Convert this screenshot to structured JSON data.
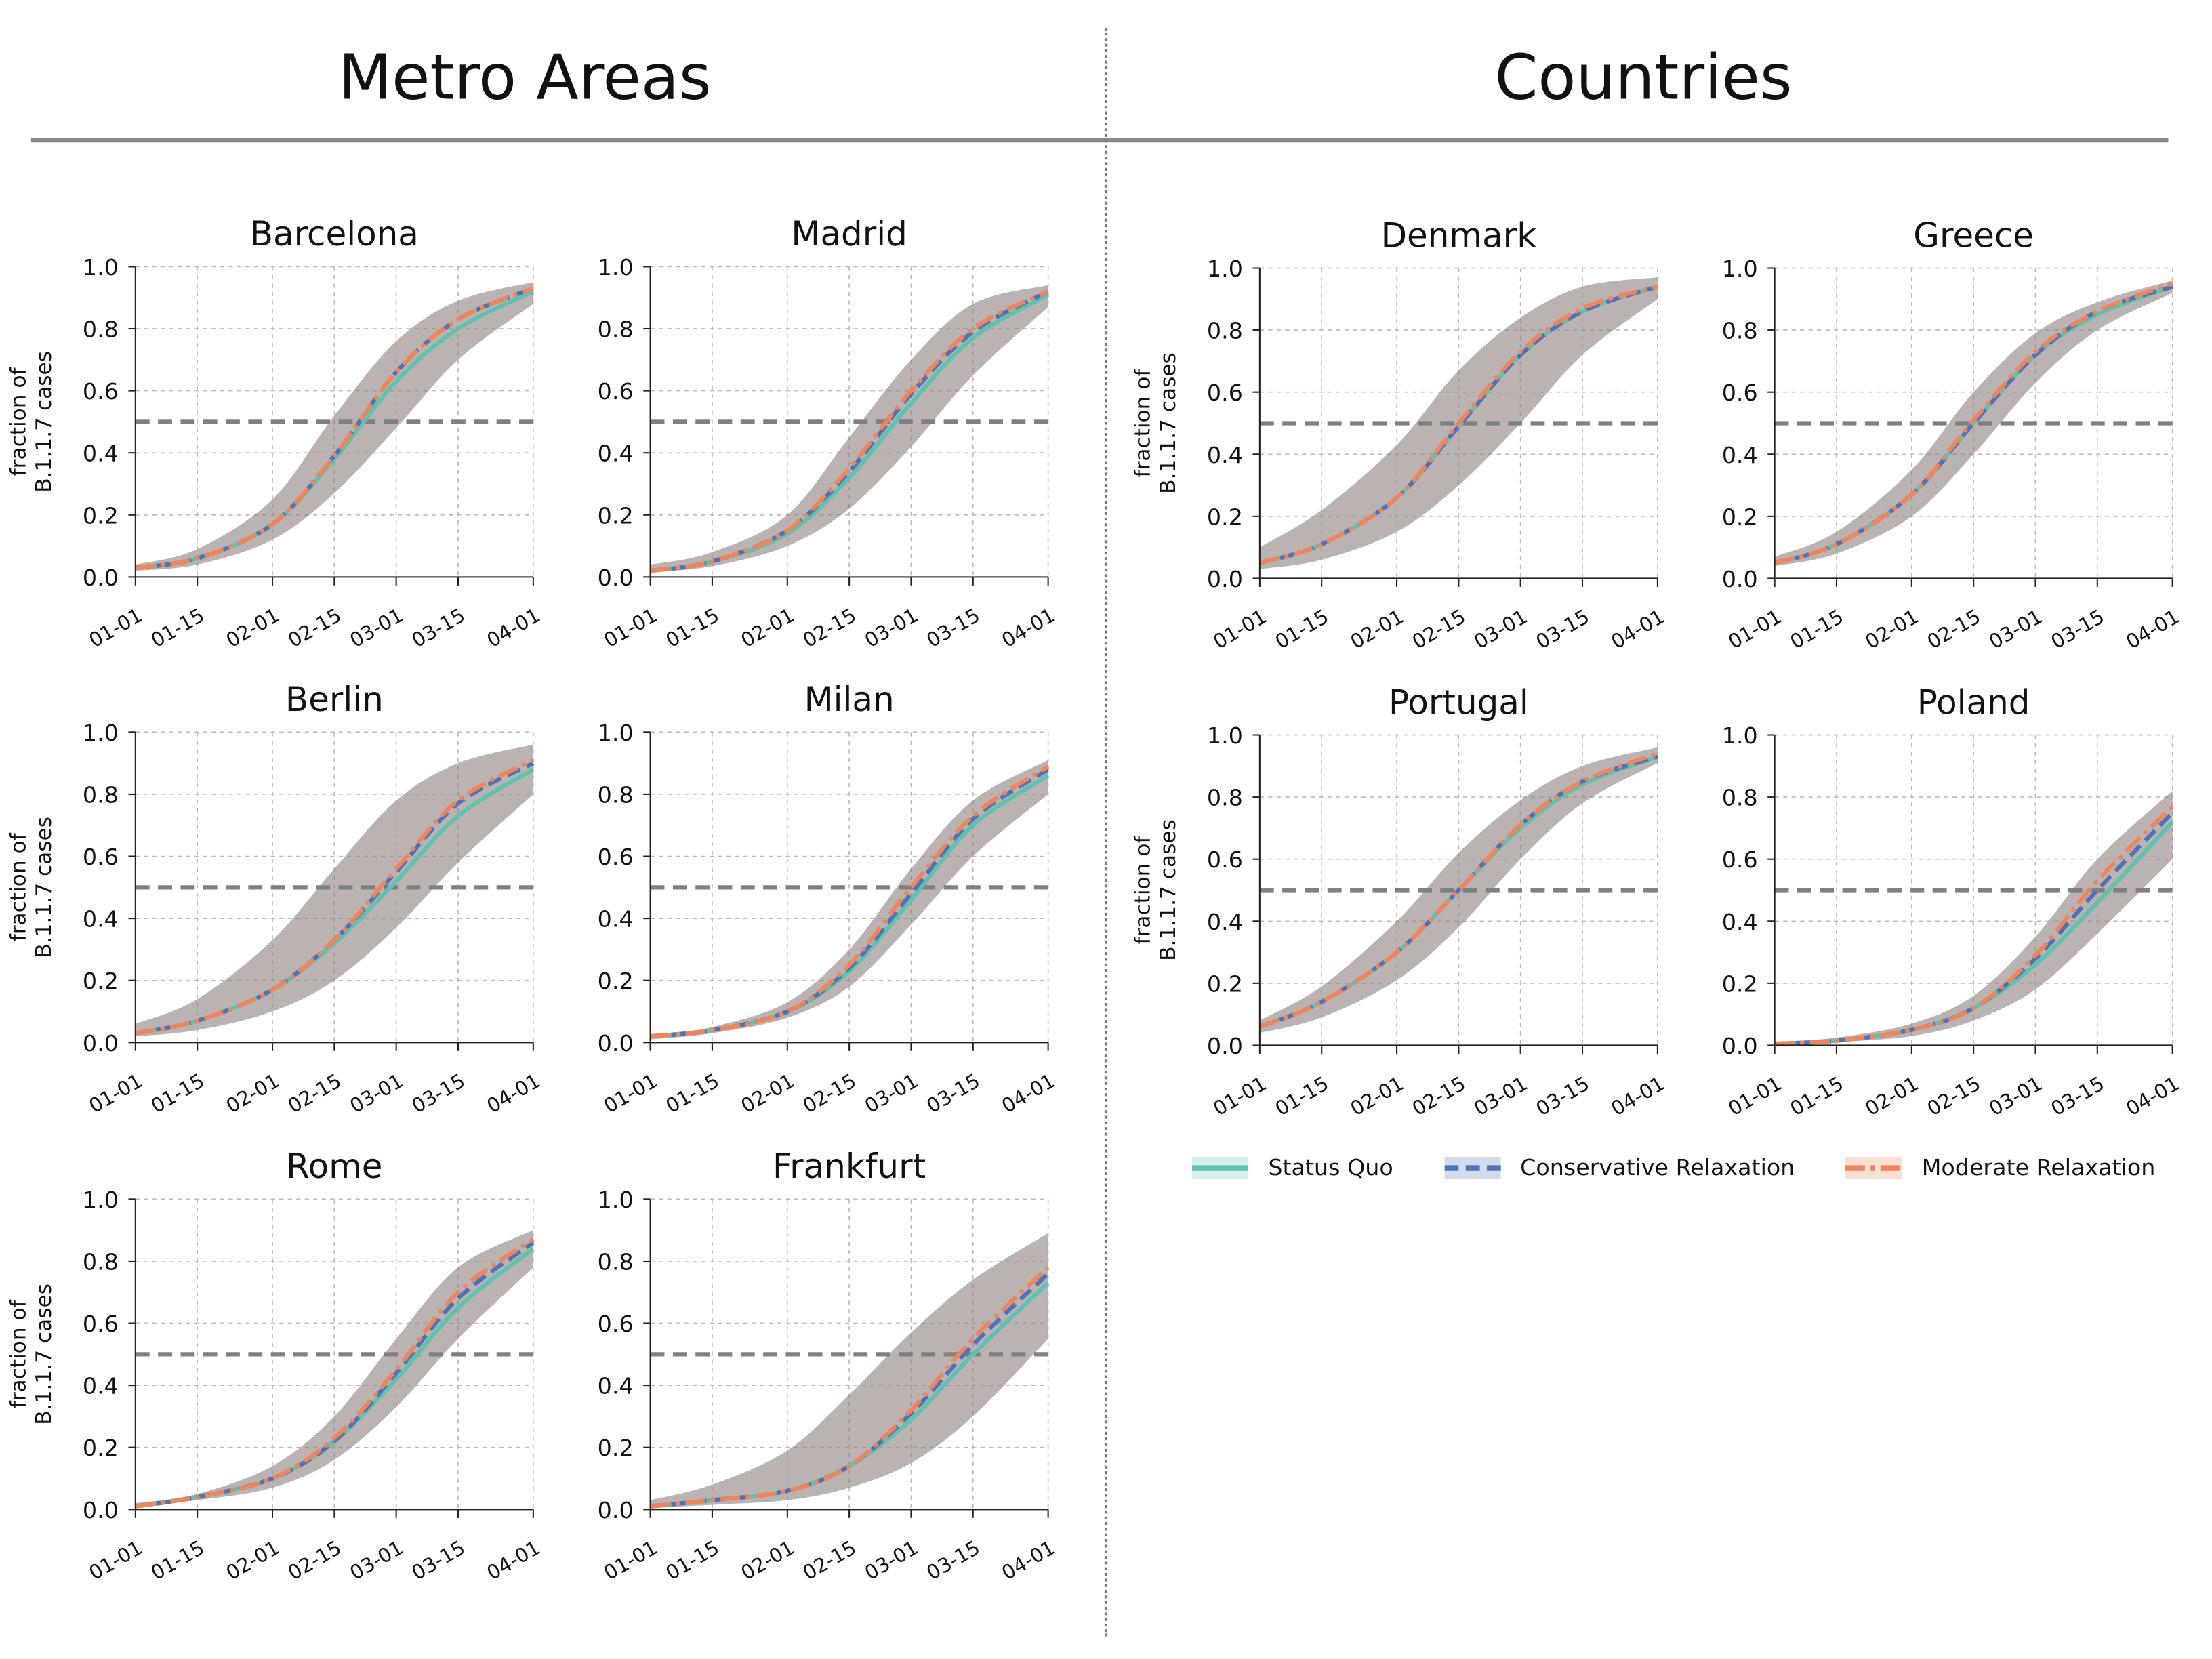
{
  "headers": {
    "left": "Metro Areas",
    "right": "Countries"
  },
  "legend": [
    {
      "label": "Status Quo",
      "color": "#5fc2b0",
      "dash": "solid"
    },
    {
      "label": "Conservative Relaxation",
      "color": "#4f72b8",
      "dash": "dashed"
    },
    {
      "label": "Moderate Relaxation",
      "color": "#f0845a",
      "dash": "dashdot"
    }
  ],
  "chart_data": [
    {
      "type": "line",
      "title": "Barcelona",
      "ylabel": "fraction of\nB.1.1.7 cases",
      "x": [
        "01-01",
        "01-15",
        "02-01",
        "02-15",
        "03-01",
        "03-15",
        "04-01"
      ],
      "ylim": [
        0,
        1
      ],
      "yticks": [
        "0.0",
        "0.2",
        "0.4",
        "0.6",
        "0.8",
        "1.0"
      ],
      "threshold": 0.5,
      "grid": true,
      "series": [
        {
          "name": "Status Quo",
          "values": [
            0.03,
            0.06,
            0.17,
            0.38,
            0.63,
            0.8,
            0.92
          ]
        },
        {
          "name": "Conservative Relaxation",
          "values": [
            0.03,
            0.06,
            0.17,
            0.39,
            0.66,
            0.83,
            0.93
          ]
        },
        {
          "name": "Moderate Relaxation",
          "values": [
            0.03,
            0.06,
            0.17,
            0.39,
            0.66,
            0.83,
            0.93
          ]
        }
      ],
      "band": {
        "lower": [
          0.02,
          0.04,
          0.12,
          0.27,
          0.48,
          0.7,
          0.88
        ],
        "upper": [
          0.04,
          0.09,
          0.25,
          0.52,
          0.76,
          0.89,
          0.95
        ]
      }
    },
    {
      "type": "line",
      "title": "Madrid",
      "ylabel": "",
      "x": [
        "01-01",
        "01-15",
        "02-01",
        "02-15",
        "03-01",
        "03-15",
        "04-01"
      ],
      "ylim": [
        0,
        1
      ],
      "yticks": [
        "0.0",
        "0.2",
        "0.4",
        "0.6",
        "0.8",
        "1.0"
      ],
      "threshold": 0.5,
      "grid": true,
      "series": [
        {
          "name": "Status Quo",
          "values": [
            0.02,
            0.05,
            0.14,
            0.32,
            0.56,
            0.77,
            0.91
          ]
        },
        {
          "name": "Conservative Relaxation",
          "values": [
            0.02,
            0.05,
            0.15,
            0.34,
            0.59,
            0.79,
            0.92
          ]
        },
        {
          "name": "Moderate Relaxation",
          "values": [
            0.02,
            0.05,
            0.15,
            0.35,
            0.6,
            0.8,
            0.92
          ]
        }
      ],
      "band": {
        "lower": [
          0.015,
          0.035,
          0.1,
          0.22,
          0.42,
          0.65,
          0.87
        ],
        "upper": [
          0.04,
          0.08,
          0.2,
          0.45,
          0.7,
          0.88,
          0.94
        ]
      }
    },
    {
      "type": "line",
      "title": "Berlin",
      "ylabel": "fraction of\nB.1.1.7 cases",
      "x": [
        "01-01",
        "01-15",
        "02-01",
        "02-15",
        "03-01",
        "03-15",
        "04-01"
      ],
      "ylim": [
        0,
        1
      ],
      "yticks": [
        "0.0",
        "0.2",
        "0.4",
        "0.6",
        "0.8",
        "1.0"
      ],
      "threshold": 0.5,
      "grid": true,
      "series": [
        {
          "name": "Status Quo",
          "values": [
            0.03,
            0.07,
            0.17,
            0.32,
            0.52,
            0.73,
            0.88
          ]
        },
        {
          "name": "Conservative Relaxation",
          "values": [
            0.03,
            0.07,
            0.17,
            0.33,
            0.55,
            0.77,
            0.9
          ]
        },
        {
          "name": "Moderate Relaxation",
          "values": [
            0.03,
            0.07,
            0.17,
            0.33,
            0.56,
            0.78,
            0.91
          ]
        }
      ],
      "band": {
        "lower": [
          0.02,
          0.04,
          0.1,
          0.2,
          0.37,
          0.58,
          0.8
        ],
        "upper": [
          0.06,
          0.14,
          0.33,
          0.56,
          0.78,
          0.9,
          0.96
        ]
      }
    },
    {
      "type": "line",
      "title": "Milan",
      "ylabel": "",
      "x": [
        "01-01",
        "01-15",
        "02-01",
        "02-15",
        "03-01",
        "03-15",
        "04-01"
      ],
      "ylim": [
        0,
        1
      ],
      "yticks": [
        "0.0",
        "0.2",
        "0.4",
        "0.6",
        "0.8",
        "1.0"
      ],
      "threshold": 0.5,
      "grid": true,
      "series": [
        {
          "name": "Status Quo",
          "values": [
            0.02,
            0.04,
            0.1,
            0.23,
            0.46,
            0.7,
            0.86
          ]
        },
        {
          "name": "Conservative Relaxation",
          "values": [
            0.02,
            0.04,
            0.1,
            0.24,
            0.48,
            0.72,
            0.88
          ]
        },
        {
          "name": "Moderate Relaxation",
          "values": [
            0.02,
            0.04,
            0.1,
            0.25,
            0.5,
            0.73,
            0.89
          ]
        }
      ],
      "band": {
        "lower": [
          0.01,
          0.03,
          0.08,
          0.18,
          0.38,
          0.6,
          0.8
        ],
        "upper": [
          0.02,
          0.05,
          0.13,
          0.3,
          0.56,
          0.78,
          0.91
        ]
      }
    },
    {
      "type": "line",
      "title": "Rome",
      "ylabel": "fraction of\nB.1.1.7 cases",
      "x": [
        "01-01",
        "01-15",
        "02-01",
        "02-15",
        "03-01",
        "03-15",
        "04-01"
      ],
      "ylim": [
        0,
        1
      ],
      "yticks": [
        "0.0",
        "0.2",
        "0.4",
        "0.6",
        "0.8",
        "1.0"
      ],
      "threshold": 0.5,
      "grid": true,
      "series": [
        {
          "name": "Status Quo",
          "values": [
            0.01,
            0.04,
            0.1,
            0.22,
            0.42,
            0.65,
            0.84
          ]
        },
        {
          "name": "Conservative Relaxation",
          "values": [
            0.01,
            0.04,
            0.1,
            0.22,
            0.44,
            0.68,
            0.86
          ]
        },
        {
          "name": "Moderate Relaxation",
          "values": [
            0.01,
            0.04,
            0.1,
            0.23,
            0.45,
            0.7,
            0.87
          ]
        }
      ],
      "band": {
        "lower": [
          0.01,
          0.03,
          0.07,
          0.16,
          0.33,
          0.55,
          0.78
        ],
        "upper": [
          0.02,
          0.05,
          0.14,
          0.3,
          0.55,
          0.78,
          0.9
        ]
      }
    },
    {
      "type": "line",
      "title": "Frankfurt",
      "ylabel": "",
      "x": [
        "01-01",
        "01-15",
        "02-01",
        "02-15",
        "03-01",
        "03-15",
        "04-01"
      ],
      "ylim": [
        0,
        1
      ],
      "yticks": [
        "0.0",
        "0.2",
        "0.4",
        "0.6",
        "0.8",
        "1.0"
      ],
      "threshold": 0.5,
      "grid": true,
      "series": [
        {
          "name": "Status Quo",
          "values": [
            0.01,
            0.03,
            0.06,
            0.14,
            0.29,
            0.5,
            0.73
          ]
        },
        {
          "name": "Conservative Relaxation",
          "values": [
            0.01,
            0.03,
            0.06,
            0.14,
            0.31,
            0.53,
            0.76
          ]
        },
        {
          "name": "Moderate Relaxation",
          "values": [
            0.01,
            0.03,
            0.06,
            0.14,
            0.32,
            0.55,
            0.78
          ]
        }
      ],
      "band": {
        "lower": [
          0.005,
          0.015,
          0.03,
          0.07,
          0.15,
          0.3,
          0.55
        ],
        "upper": [
          0.03,
          0.08,
          0.19,
          0.37,
          0.57,
          0.74,
          0.89
        ]
      }
    },
    {
      "type": "line",
      "title": "Denmark",
      "ylabel": "fraction of\nB.1.1.7 cases",
      "x": [
        "01-01",
        "01-15",
        "02-01",
        "02-15",
        "03-01",
        "03-15",
        "04-01"
      ],
      "ylim": [
        0,
        1
      ],
      "yticks": [
        "0.0",
        "0.2",
        "0.4",
        "0.6",
        "0.8",
        "1.0"
      ],
      "threshold": 0.5,
      "grid": true,
      "series": [
        {
          "name": "Status Quo",
          "values": [
            0.05,
            0.11,
            0.26,
            0.49,
            0.72,
            0.86,
            0.94
          ]
        },
        {
          "name": "Conservative Relaxation",
          "values": [
            0.05,
            0.11,
            0.26,
            0.49,
            0.72,
            0.86,
            0.94
          ]
        },
        {
          "name": "Moderate Relaxation",
          "values": [
            0.05,
            0.11,
            0.26,
            0.5,
            0.73,
            0.87,
            0.94
          ]
        }
      ],
      "band": {
        "lower": [
          0.03,
          0.06,
          0.15,
          0.3,
          0.5,
          0.72,
          0.9
        ],
        "upper": [
          0.1,
          0.22,
          0.43,
          0.67,
          0.84,
          0.94,
          0.97
        ]
      }
    },
    {
      "type": "line",
      "title": "Greece",
      "ylabel": "",
      "x": [
        "01-01",
        "01-15",
        "02-01",
        "02-15",
        "03-01",
        "03-15",
        "04-01"
      ],
      "ylim": [
        0,
        1
      ],
      "yticks": [
        "0.0",
        "0.2",
        "0.4",
        "0.6",
        "0.8",
        "1.0"
      ],
      "threshold": 0.5,
      "grid": true,
      "series": [
        {
          "name": "Status Quo",
          "values": [
            0.05,
            0.11,
            0.27,
            0.5,
            0.72,
            0.85,
            0.94
          ]
        },
        {
          "name": "Conservative Relaxation",
          "values": [
            0.05,
            0.11,
            0.27,
            0.5,
            0.72,
            0.86,
            0.94
          ]
        },
        {
          "name": "Moderate Relaxation",
          "values": [
            0.05,
            0.11,
            0.27,
            0.51,
            0.73,
            0.86,
            0.95
          ]
        }
      ],
      "band": {
        "lower": [
          0.04,
          0.08,
          0.2,
          0.4,
          0.63,
          0.8,
          0.92
        ],
        "upper": [
          0.07,
          0.15,
          0.35,
          0.6,
          0.79,
          0.89,
          0.96
        ]
      }
    },
    {
      "type": "line",
      "title": "Portugal",
      "ylabel": "fraction of\nB.1.1.7 cases",
      "x": [
        "01-01",
        "01-15",
        "02-01",
        "02-15",
        "03-01",
        "03-15",
        "04-01"
      ],
      "ylim": [
        0,
        1
      ],
      "yticks": [
        "0.0",
        "0.2",
        "0.4",
        "0.6",
        "0.8",
        "1.0"
      ],
      "threshold": 0.5,
      "grid": true,
      "series": [
        {
          "name": "Status Quo",
          "values": [
            0.06,
            0.14,
            0.3,
            0.5,
            0.7,
            0.84,
            0.93
          ]
        },
        {
          "name": "Conservative Relaxation",
          "values": [
            0.06,
            0.14,
            0.3,
            0.5,
            0.71,
            0.85,
            0.93
          ]
        },
        {
          "name": "Moderate Relaxation",
          "values": [
            0.06,
            0.14,
            0.3,
            0.5,
            0.71,
            0.85,
            0.94
          ]
        }
      ],
      "band": {
        "lower": [
          0.04,
          0.09,
          0.21,
          0.38,
          0.6,
          0.78,
          0.91
        ],
        "upper": [
          0.08,
          0.19,
          0.4,
          0.62,
          0.79,
          0.9,
          0.96
        ]
      }
    },
    {
      "type": "line",
      "title": "Poland",
      "ylabel": "",
      "x": [
        "01-01",
        "01-15",
        "02-01",
        "02-15",
        "03-01",
        "03-15",
        "04-01"
      ],
      "ylim": [
        0,
        1
      ],
      "yticks": [
        "0.0",
        "0.2",
        "0.4",
        "0.6",
        "0.8",
        "1.0"
      ],
      "threshold": 0.5,
      "grid": true,
      "series": [
        {
          "name": "Status Quo",
          "values": [
            0.005,
            0.015,
            0.05,
            0.12,
            0.26,
            0.46,
            0.72
          ]
        },
        {
          "name": "Conservative Relaxation",
          "values": [
            0.005,
            0.015,
            0.05,
            0.12,
            0.28,
            0.5,
            0.75
          ]
        },
        {
          "name": "Moderate Relaxation",
          "values": [
            0.005,
            0.015,
            0.05,
            0.12,
            0.29,
            0.53,
            0.77
          ]
        }
      ],
      "band": {
        "lower": [
          0.003,
          0.01,
          0.03,
          0.08,
          0.18,
          0.36,
          0.6
        ],
        "upper": [
          0.01,
          0.025,
          0.07,
          0.16,
          0.35,
          0.6,
          0.82
        ]
      }
    }
  ]
}
